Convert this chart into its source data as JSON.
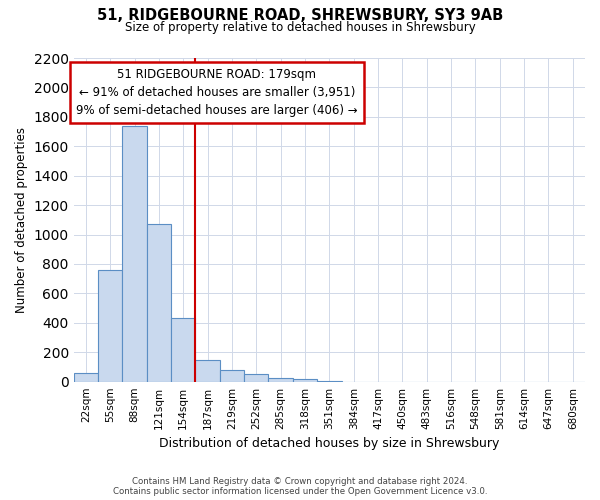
{
  "title": "51, RIDGEBOURNE ROAD, SHREWSBURY, SY3 9AB",
  "subtitle": "Size of property relative to detached houses in Shrewsbury",
  "bar_labels": [
    "22sqm",
    "55sqm",
    "88sqm",
    "121sqm",
    "154sqm",
    "187sqm",
    "219sqm",
    "252sqm",
    "285sqm",
    "318sqm",
    "351sqm",
    "384sqm",
    "417sqm",
    "450sqm",
    "483sqm",
    "516sqm",
    "548sqm",
    "581sqm",
    "614sqm",
    "647sqm",
    "680sqm"
  ],
  "bar_values": [
    60,
    760,
    1740,
    1070,
    430,
    150,
    80,
    50,
    25,
    15,
    5,
    0,
    0,
    0,
    0,
    0,
    0,
    0,
    0,
    0,
    0
  ],
  "bar_color": "#c9d9ee",
  "bar_edge_color": "#5b8ec4",
  "vline_x": 4.5,
  "vline_color": "#cc0000",
  "annotation_title": "51 RIDGEBOURNE ROAD: 179sqm",
  "annotation_line1": "← 91% of detached houses are smaller (3,951)",
  "annotation_line2": "9% of semi-detached houses are larger (406) →",
  "annotation_box_color": "#ffffff",
  "annotation_box_edge": "#cc0000",
  "xlabel": "Distribution of detached houses by size in Shrewsbury",
  "ylabel": "Number of detached properties",
  "ylim": [
    0,
    2200
  ],
  "yticks": [
    0,
    200,
    400,
    600,
    800,
    1000,
    1200,
    1400,
    1600,
    1800,
    2000,
    2200
  ],
  "footer_line1": "Contains HM Land Registry data © Crown copyright and database right 2024.",
  "footer_line2": "Contains public sector information licensed under the Open Government Licence v3.0.",
  "bg_color": "#ffffff",
  "grid_color": "#d0d8e8"
}
